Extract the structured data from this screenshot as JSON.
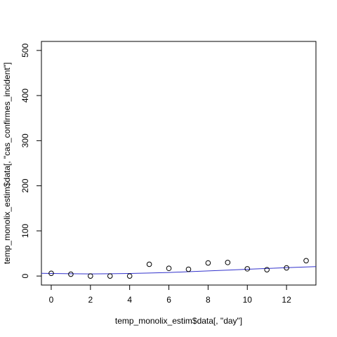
{
  "chart_data": {
    "type": "scatter",
    "xlabel": "temp_monolix_estim$data[, \"day\"]",
    "ylabel": "temp_monolix_estim$data[, \"cas_confirmes_incident\"]",
    "xlim": [
      -0.5,
      13.5
    ],
    "ylim": [
      -20,
      520
    ],
    "x_ticks": [
      0,
      2,
      4,
      6,
      8,
      10,
      12
    ],
    "y_ticks": [
      0,
      100,
      200,
      300,
      400,
      500
    ],
    "grid": false,
    "series": [
      {
        "kind": "points",
        "marker": "open-circle",
        "x": [
          0,
          1,
          2,
          3,
          4,
          5,
          6,
          7,
          8,
          9,
          10,
          11,
          12,
          13
        ],
        "y": [
          6,
          4,
          0,
          0,
          0,
          26,
          17,
          15,
          29,
          30,
          16,
          14,
          18,
          34
        ]
      },
      {
        "kind": "line",
        "color": "#3333cc",
        "x": [
          -0.5,
          0,
          1,
          2,
          3,
          4,
          5,
          6,
          7,
          8,
          9,
          10,
          11,
          12,
          13,
          13.5
        ],
        "y": [
          6.0,
          5.6,
          5.0,
          4.8,
          5.0,
          5.6,
          6.6,
          7.9,
          9.5,
          11.3,
          13.2,
          15.0,
          16.8,
          18.5,
          20.0,
          21.0
        ]
      }
    ]
  }
}
